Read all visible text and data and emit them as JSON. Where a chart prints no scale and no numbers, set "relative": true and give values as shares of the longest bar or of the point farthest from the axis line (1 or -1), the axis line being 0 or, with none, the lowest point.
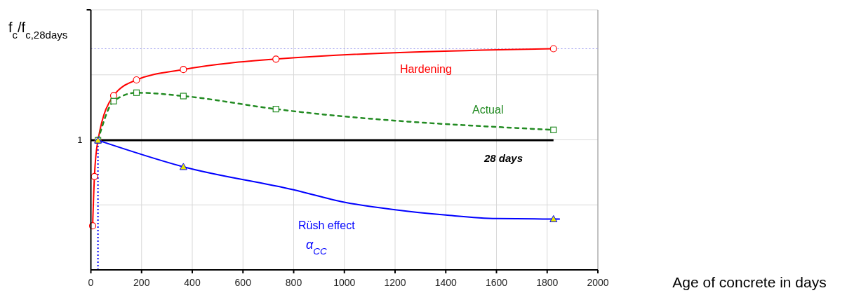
{
  "chart_data": {
    "type": "line",
    "relative": true,
    "ylabel": "f$_{c}$/f$_{c,28days}$",
    "xlabel": "Age of concrete in days",
    "xlim": [
      0,
      2000
    ],
    "xticks": [
      0,
      200,
      400,
      600,
      800,
      1000,
      1200,
      1400,
      1600,
      1800,
      2000
    ],
    "grid": true,
    "series": [
      {
        "name": "Hardening",
        "color": "#ff0000",
        "marker": "circle",
        "line_style": "solid",
        "x": [
          7,
          14,
          28,
          90,
          180,
          365,
          730,
          1825
        ],
        "values": [
          0.199,
          0.422,
          0.586,
          0.788,
          0.859,
          0.906,
          0.953,
          1.0
        ]
      },
      {
        "name": "Actual",
        "color": "#228b22",
        "marker": "square",
        "line_style": "dashed",
        "x": [
          28,
          90,
          180,
          365,
          730,
          1825
        ],
        "values": [
          0.586,
          0.763,
          0.801,
          0.786,
          0.727,
          0.633
        ]
      },
      {
        "name": "Rüsh effect",
        "color": "#0000ff",
        "marker": "none",
        "line_style": "solid",
        "x": [
          28,
          365,
          800,
          1000,
          1200,
          1400,
          1600,
          1825,
          1848
        ],
        "values": [
          0.586,
          0.466,
          0.362,
          0.306,
          0.272,
          0.248,
          0.232,
          0.23,
          0.23
        ]
      },
      {
        "type": "scatter",
        "color": "#0000ff",
        "marker": "triangle",
        "x": [
          28,
          365,
          1825
        ],
        "values": [
          0.586,
          0.466,
          0.23
        ]
      }
    ],
    "ref_lines": [
      {
        "axis": "y",
        "value": 0.586,
        "label": "1",
        "color": "#000000",
        "line_style": "solid"
      },
      {
        "axis": "x",
        "value": 28,
        "color": "#0000ff",
        "line_style": "dotted"
      },
      {
        "axis": "y",
        "value": 1.0,
        "color": "#9999ee",
        "line_style": "dotted"
      }
    ],
    "annotations": [
      "28 days",
      "α$_{CC}$"
    ]
  }
}
